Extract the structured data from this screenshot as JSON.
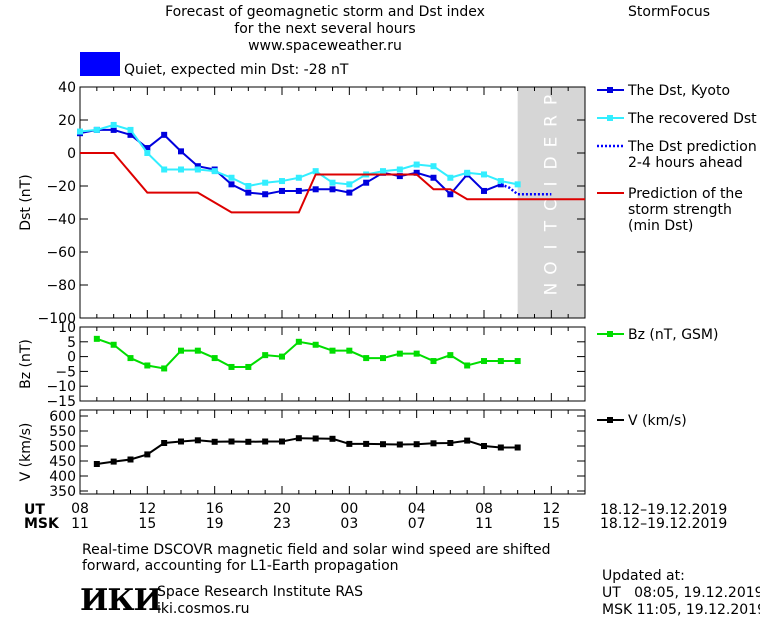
{
  "header": {
    "title_line1": "Forecast of geomagnetic storm and Dst index",
    "title_line2": "for the next several hours",
    "url": "www.spaceweather.ru",
    "brand": "StormFocus"
  },
  "status": {
    "text": "Quiet, expected min Dst: -28 nT",
    "color": "#0000ff"
  },
  "colors": {
    "dst_kyoto": "#0000dd",
    "dst_recovered": "#33eeff",
    "dst_prediction": "#0000ff",
    "storm_strength": "#dd0000",
    "bz": "#00dd00",
    "v": "#000000",
    "prediction_zone": "#d6d6d6"
  },
  "chart_data": [
    {
      "id": "dst",
      "type": "line",
      "ylabel": "Dst (nT)",
      "ylim": [
        -100,
        40
      ],
      "yticks": [
        40,
        20,
        0,
        -20,
        -40,
        -60,
        -80,
        -100
      ],
      "xlim": [
        0,
        30
      ],
      "prediction_zone": [
        26,
        30
      ],
      "prediction_label": "PREDICTION",
      "legend_placement": "right",
      "series": [
        {
          "name": "The Dst, Kyoto",
          "marker": "square",
          "x": [
            0,
            1,
            2,
            3,
            4,
            5,
            6,
            7,
            8,
            9,
            10,
            11,
            12,
            13,
            14,
            15,
            16,
            17,
            18,
            19,
            20,
            21,
            22,
            23,
            24,
            25
          ],
          "y": [
            12,
            14,
            14,
            11,
            3,
            11,
            1,
            -8,
            -10,
            -19,
            -24,
            -25,
            -23,
            -23,
            -22,
            -22,
            -24,
            -18,
            -12,
            -14,
            -12,
            -15,
            -25,
            -13,
            -23,
            -19
          ]
        },
        {
          "name": "The recovered Dst",
          "marker": "square",
          "x": [
            0,
            1,
            2,
            3,
            4,
            5,
            6,
            7,
            8,
            9,
            10,
            11,
            12,
            13,
            14,
            15,
            16,
            17,
            18,
            19,
            20,
            21,
            22,
            23,
            24,
            25,
            26
          ],
          "y": [
            13,
            14,
            17,
            14,
            0,
            -10,
            -10,
            -10,
            -11,
            -15,
            -20,
            -18,
            -17,
            -15,
            -11,
            -18,
            -19,
            -13,
            -11,
            -10,
            -7,
            -8,
            -15,
            -12,
            -13,
            -17,
            -19
          ]
        },
        {
          "name": "The Dst prediction\n2-4 hours ahead",
          "dotted": true,
          "x": [
            25,
            25.5,
            26,
            27,
            28
          ],
          "y": [
            -19,
            -21,
            -25,
            -25,
            -25
          ]
        },
        {
          "name": "Prediction of the\nstorm strength\n(min Dst)",
          "step": true,
          "x": [
            0,
            2,
            4,
            7,
            9,
            13,
            14,
            15,
            19,
            20,
            21,
            22,
            23,
            26,
            30
          ],
          "y": [
            0,
            0,
            -24,
            -24,
            -36,
            -36,
            -13,
            -13,
            -13,
            -13,
            -22,
            -22,
            -28,
            -28,
            -28
          ]
        }
      ]
    },
    {
      "id": "bz",
      "type": "line",
      "ylabel": "Bz (nT)",
      "ylim": [
        -15,
        10
      ],
      "yticks": [
        10,
        5,
        0,
        -5,
        -10,
        -15
      ],
      "xlim": [
        0,
        30
      ],
      "series": [
        {
          "name": "Bz (nT, GSM)",
          "marker": "square",
          "x": [
            1,
            2,
            3,
            4,
            5,
            6,
            7,
            8,
            9,
            10,
            11,
            12,
            13,
            14,
            15,
            16,
            17,
            18,
            19,
            20,
            21,
            22,
            23,
            24,
            25,
            26
          ],
          "y": [
            6,
            4,
            -0.5,
            -3,
            -4,
            2,
            2,
            -0.5,
            -3.5,
            -3.5,
            0.5,
            0,
            5,
            4,
            2,
            2,
            -0.5,
            -0.5,
            1,
            1,
            -1.5,
            0.5,
            -3,
            -1.5,
            -1.5,
            -1.5
          ]
        }
      ]
    },
    {
      "id": "v",
      "type": "line",
      "ylabel": "V (km/s)",
      "ylim": [
        340,
        620
      ],
      "yticks": [
        600,
        550,
        500,
        450,
        400,
        350
      ],
      "xlim": [
        0,
        30
      ],
      "series": [
        {
          "name": "V (km/s)",
          "marker": "square",
          "x": [
            1,
            2,
            3,
            4,
            5,
            6,
            7,
            8,
            9,
            10,
            11,
            12,
            13,
            14,
            15,
            16,
            17,
            18,
            19,
            20,
            21,
            22,
            23,
            24,
            25,
            26
          ],
          "y": [
            440,
            448,
            455,
            472,
            510,
            515,
            519,
            514,
            515,
            514,
            515,
            515,
            526,
            525,
            524,
            507,
            507,
            506,
            505,
            506,
            509,
            510,
            518,
            500,
            495,
            495
          ]
        }
      ]
    }
  ],
  "x_axis": {
    "ut_label": "UT",
    "msk_label": "MSK",
    "ut_ticks": [
      "08",
      "12",
      "16",
      "20",
      "00",
      "04",
      "08",
      "12"
    ],
    "msk_ticks": [
      "11",
      "15",
      "19",
      "23",
      "03",
      "07",
      "11",
      "15"
    ],
    "range_ut": "18.12–19.12.2019",
    "range_msk": "18.12–19.12.2019"
  },
  "footer": {
    "note_line1": "Real-time DSCOVR magnetic field and solar wind speed are shifted",
    "note_line2": "forward, accounting for L1-Earth propagation",
    "logo_text": "ИКИ",
    "org_name": "Space Research Institute RAS",
    "org_url": "iki.cosmos.ru",
    "updated_label": "Updated at:",
    "updated_ut": "UT   08:05, 19.12.2019",
    "updated_msk": "MSK 11:05, 19.12.2019"
  }
}
